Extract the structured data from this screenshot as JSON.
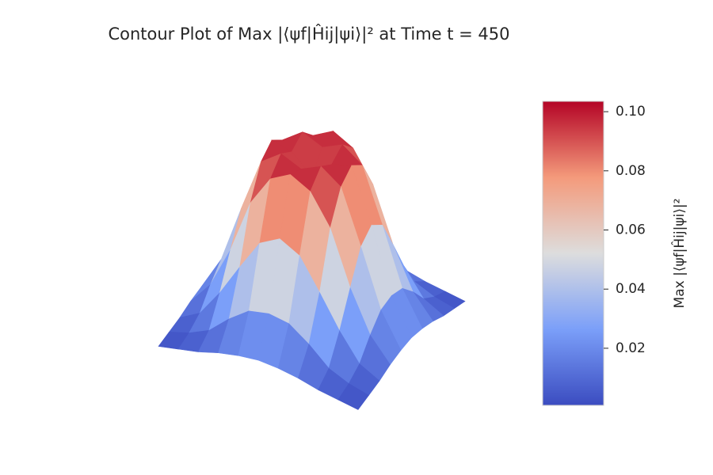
{
  "chart_data": {
    "type": "surface",
    "title": "Contour Plot of Max |⟨ψf|Ĥij|ψi⟩|² at Time t = 450",
    "colorbar_label": "Max |⟨ψf|Ĥij|ψi⟩|²",
    "colormap": "coolwarm",
    "clim": [
      0.0007,
      0.1035
    ],
    "cticks": [
      0.02,
      0.04,
      0.06,
      0.08,
      {
        "value": 0.1,
        "label": "0.10"
      }
    ],
    "z": [
      [
        0.002,
        0.004,
        0.006,
        0.009,
        0.011,
        0.012,
        0.011,
        0.009,
        0.006,
        0.004,
        0.002
      ],
      [
        0.004,
        0.007,
        0.012,
        0.022,
        0.03,
        0.032,
        0.03,
        0.022,
        0.012,
        0.007,
        0.004
      ],
      [
        0.006,
        0.012,
        0.027,
        0.045,
        0.062,
        0.068,
        0.062,
        0.045,
        0.027,
        0.012,
        0.006
      ],
      [
        0.009,
        0.022,
        0.045,
        0.075,
        0.092,
        0.098,
        0.092,
        0.075,
        0.045,
        0.022,
        0.009
      ],
      [
        0.011,
        0.03,
        0.062,
        0.092,
        0.1,
        0.095,
        0.1,
        0.092,
        0.062,
        0.03,
        0.011
      ],
      [
        0.012,
        0.032,
        0.068,
        0.098,
        0.095,
        0.085,
        0.095,
        0.098,
        0.068,
        0.032,
        0.012
      ],
      [
        0.011,
        0.03,
        0.062,
        0.092,
        0.1,
        0.095,
        0.1,
        0.092,
        0.062,
        0.03,
        0.011
      ],
      [
        0.009,
        0.022,
        0.045,
        0.075,
        0.092,
        0.098,
        0.092,
        0.075,
        0.045,
        0.022,
        0.009
      ],
      [
        0.006,
        0.012,
        0.027,
        0.045,
        0.062,
        0.068,
        0.062,
        0.045,
        0.027,
        0.012,
        0.006
      ],
      [
        0.004,
        0.007,
        0.012,
        0.022,
        0.03,
        0.032,
        0.03,
        0.022,
        0.012,
        0.007,
        0.004
      ],
      [
        0.002,
        0.004,
        0.006,
        0.009,
        0.011,
        0.012,
        0.011,
        0.009,
        0.006,
        0.004,
        0.002
      ]
    ]
  }
}
